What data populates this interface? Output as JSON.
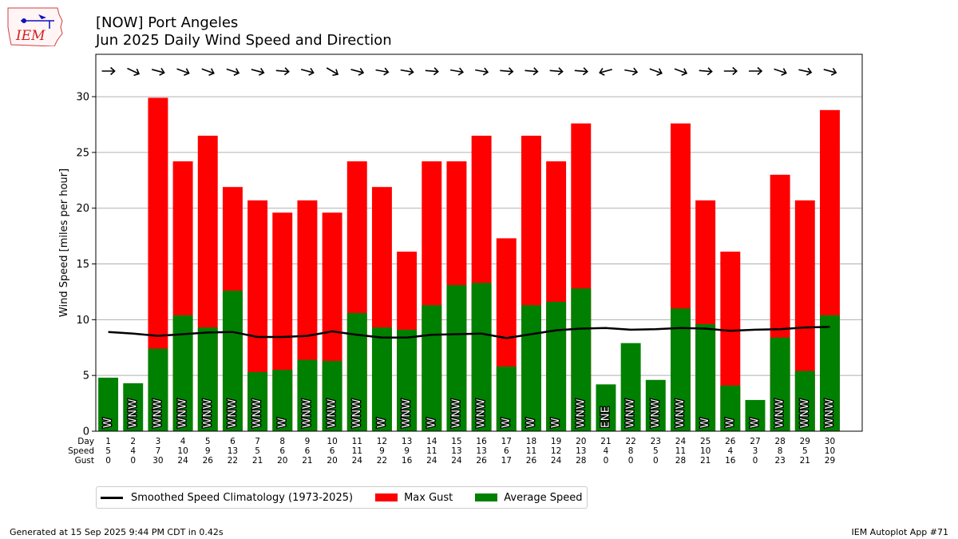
{
  "title_line1": "[NOW] Port Angeles",
  "title_line2": "Jun 2025 Daily Wind Speed and Direction",
  "footer_left": "Generated at 15 Sep 2025 9:44 PM CDT in 0.42s",
  "footer_right": "IEM Autoplot App #71",
  "logo_text": "IEM",
  "colors": {
    "gust": "#ff0000",
    "avg": "#008000",
    "climo": "#000000",
    "grid": "#b0b0b0"
  },
  "legend": {
    "climo": "Smoothed Speed Climatology (1973-2025)",
    "gust": "Max Gust",
    "avg": "Average Speed"
  },
  "chart_data": {
    "type": "bar",
    "ylabel": "Wind Speed [miles per hour]",
    "ylim": [
      0,
      33.8
    ],
    "yticks": [
      0,
      5,
      10,
      15,
      20,
      25,
      30
    ],
    "grid": true,
    "legend_position": "bottom-left",
    "row_labels": [
      "Day",
      "Speed",
      "Gust"
    ],
    "days": [
      1,
      2,
      3,
      4,
      5,
      6,
      7,
      8,
      9,
      10,
      11,
      12,
      13,
      14,
      15,
      16,
      17,
      18,
      19,
      20,
      21,
      22,
      23,
      24,
      25,
      26,
      27,
      28,
      29,
      30
    ],
    "avg_speed": [
      4.8,
      4.3,
      7.4,
      10.4,
      9.3,
      12.6,
      5.3,
      5.5,
      6.4,
      6.3,
      10.6,
      9.3,
      9.1,
      11.3,
      13.1,
      13.3,
      5.8,
      11.3,
      11.6,
      12.8,
      4.2,
      7.9,
      4.6,
      11.0,
      9.6,
      4.1,
      2.8,
      8.4,
      5.4,
      10.4
    ],
    "max_gust": [
      0,
      0,
      29.9,
      24.2,
      26.5,
      21.9,
      20.7,
      19.6,
      20.7,
      19.6,
      24.2,
      21.9,
      16.1,
      24.2,
      24.2,
      26.5,
      17.3,
      26.5,
      24.2,
      27.6,
      0,
      0,
      0,
      27.6,
      20.7,
      16.1,
      0,
      23.0,
      20.7,
      28.8
    ],
    "speed_row": [
      "5",
      "4",
      "7",
      "10",
      "9",
      "13",
      "5",
      "6",
      "6",
      "6",
      "11",
      "9",
      "9",
      "11",
      "13",
      "13",
      "6",
      "11",
      "12",
      "13",
      "4",
      "8",
      "5",
      "11",
      "10",
      "4",
      "3",
      "8",
      "5",
      "10"
    ],
    "gust_row": [
      "0",
      "0",
      "30",
      "24",
      "26",
      "22",
      "21",
      "20",
      "21",
      "20",
      "24",
      "22",
      "16",
      "24",
      "24",
      "26",
      "17",
      "26",
      "24",
      "28",
      "0",
      "0",
      "0",
      "28",
      "21",
      "16",
      "0",
      "23",
      "21",
      "29"
    ],
    "direction_labels": [
      "W",
      "WNW",
      "WNW",
      "WNW",
      "WNW",
      "WNW",
      "WNW",
      "W",
      "WNW",
      "WNW",
      "WNW",
      "W",
      "WNW",
      "W",
      "WNW",
      "WNW",
      "W",
      "W",
      "W",
      "WNW",
      "ENE",
      "WNW",
      "WNW",
      "WNW",
      "W",
      "W",
      "W",
      "WNW",
      "WNW",
      "WNW"
    ],
    "arrow_angles_deg": [
      0,
      25,
      15,
      20,
      20,
      18,
      15,
      5,
      15,
      30,
      15,
      10,
      10,
      5,
      10,
      10,
      5,
      5,
      5,
      5,
      165,
      10,
      20,
      20,
      5,
      0,
      0,
      18,
      12,
      15
    ],
    "climatology": [
      8.9,
      8.75,
      8.55,
      8.7,
      8.85,
      8.9,
      8.45,
      8.45,
      8.55,
      8.95,
      8.65,
      8.4,
      8.4,
      8.65,
      8.7,
      8.75,
      8.35,
      8.7,
      9.05,
      9.2,
      9.25,
      9.1,
      9.15,
      9.25,
      9.2,
      9.0,
      9.1,
      9.15,
      9.3,
      9.35
    ]
  }
}
